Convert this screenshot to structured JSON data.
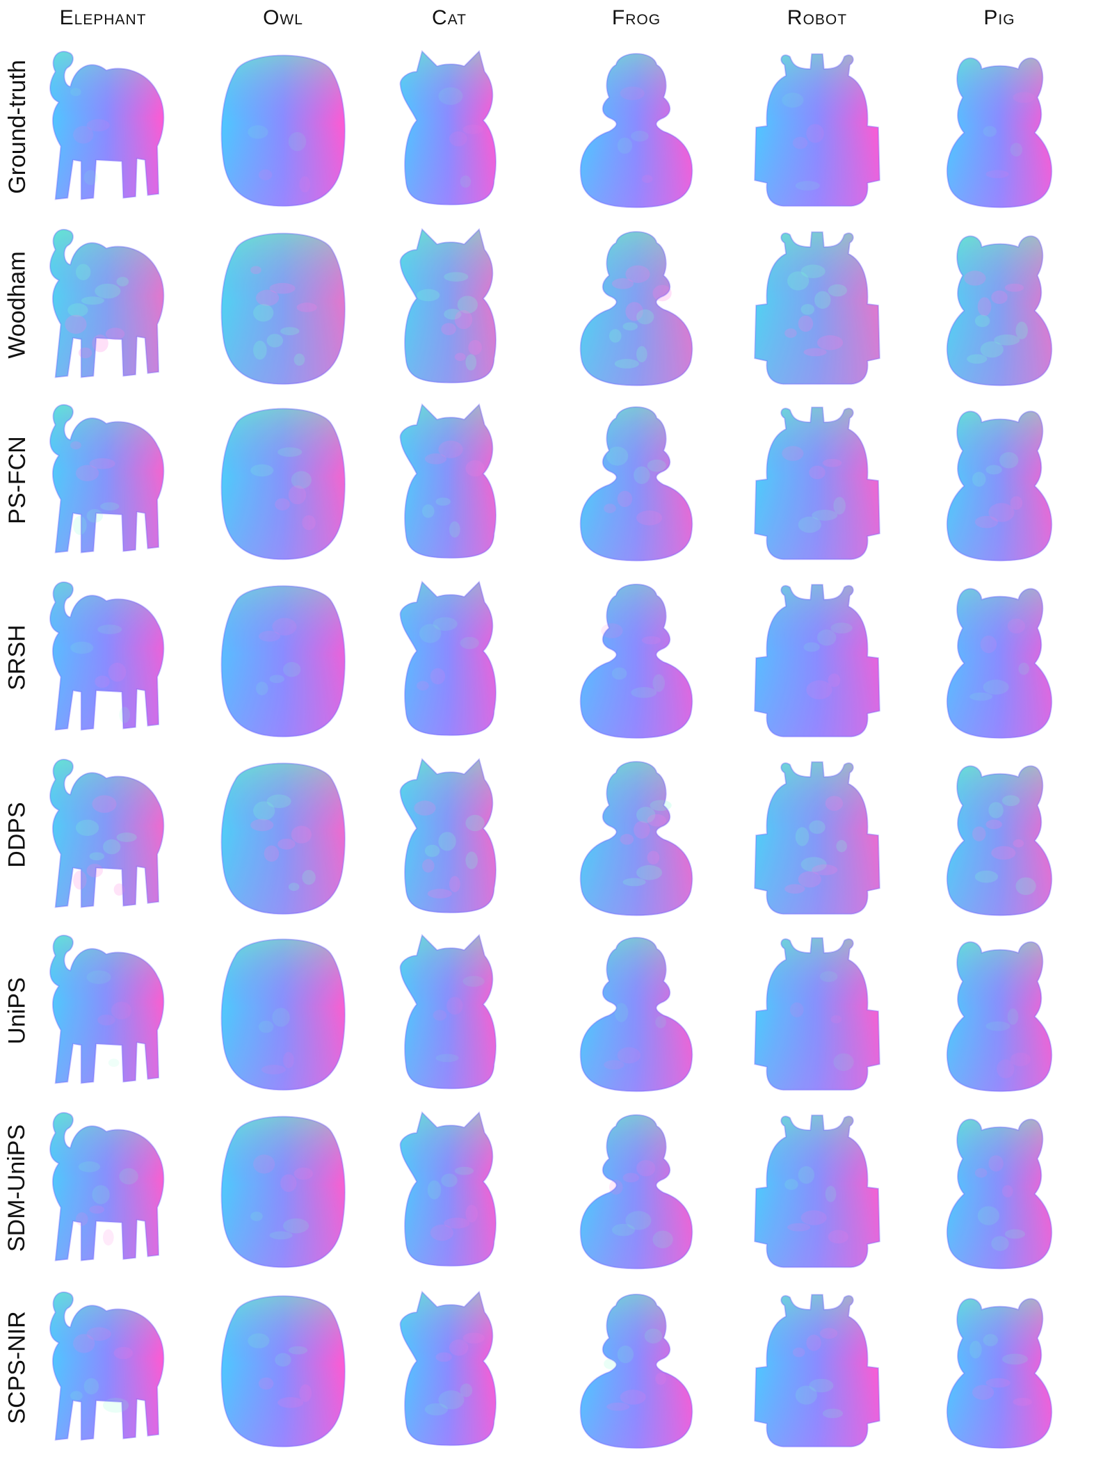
{
  "objects": [
    {
      "label": "Elephant",
      "shape": "elephant-silhouette"
    },
    {
      "label": "Owl",
      "shape": "owl-silhouette"
    },
    {
      "label": "Cat",
      "shape": "cat-silhouette"
    },
    {
      "label": "Frog",
      "shape": "frog-silhouette"
    },
    {
      "label": "Robot",
      "shape": "robot-silhouette"
    },
    {
      "label": "Pig",
      "shape": "pig-silhouette"
    }
  ],
  "methods": [
    {
      "label": "Ground-truth"
    },
    {
      "label": "Woodham"
    },
    {
      "label": "PS-FCN"
    },
    {
      "label": "SRSH"
    },
    {
      "label": "DDPS"
    },
    {
      "label": "UniPS"
    },
    {
      "label": "SDM-UniPS"
    },
    {
      "label": "SCPS-NIR"
    }
  ],
  "normal_map_colors": {
    "center": "#8a8cff",
    "left": "#4ec8ff",
    "right": "#ff5ad2",
    "top": "#77ffb0",
    "bottom": "#b67cff"
  }
}
